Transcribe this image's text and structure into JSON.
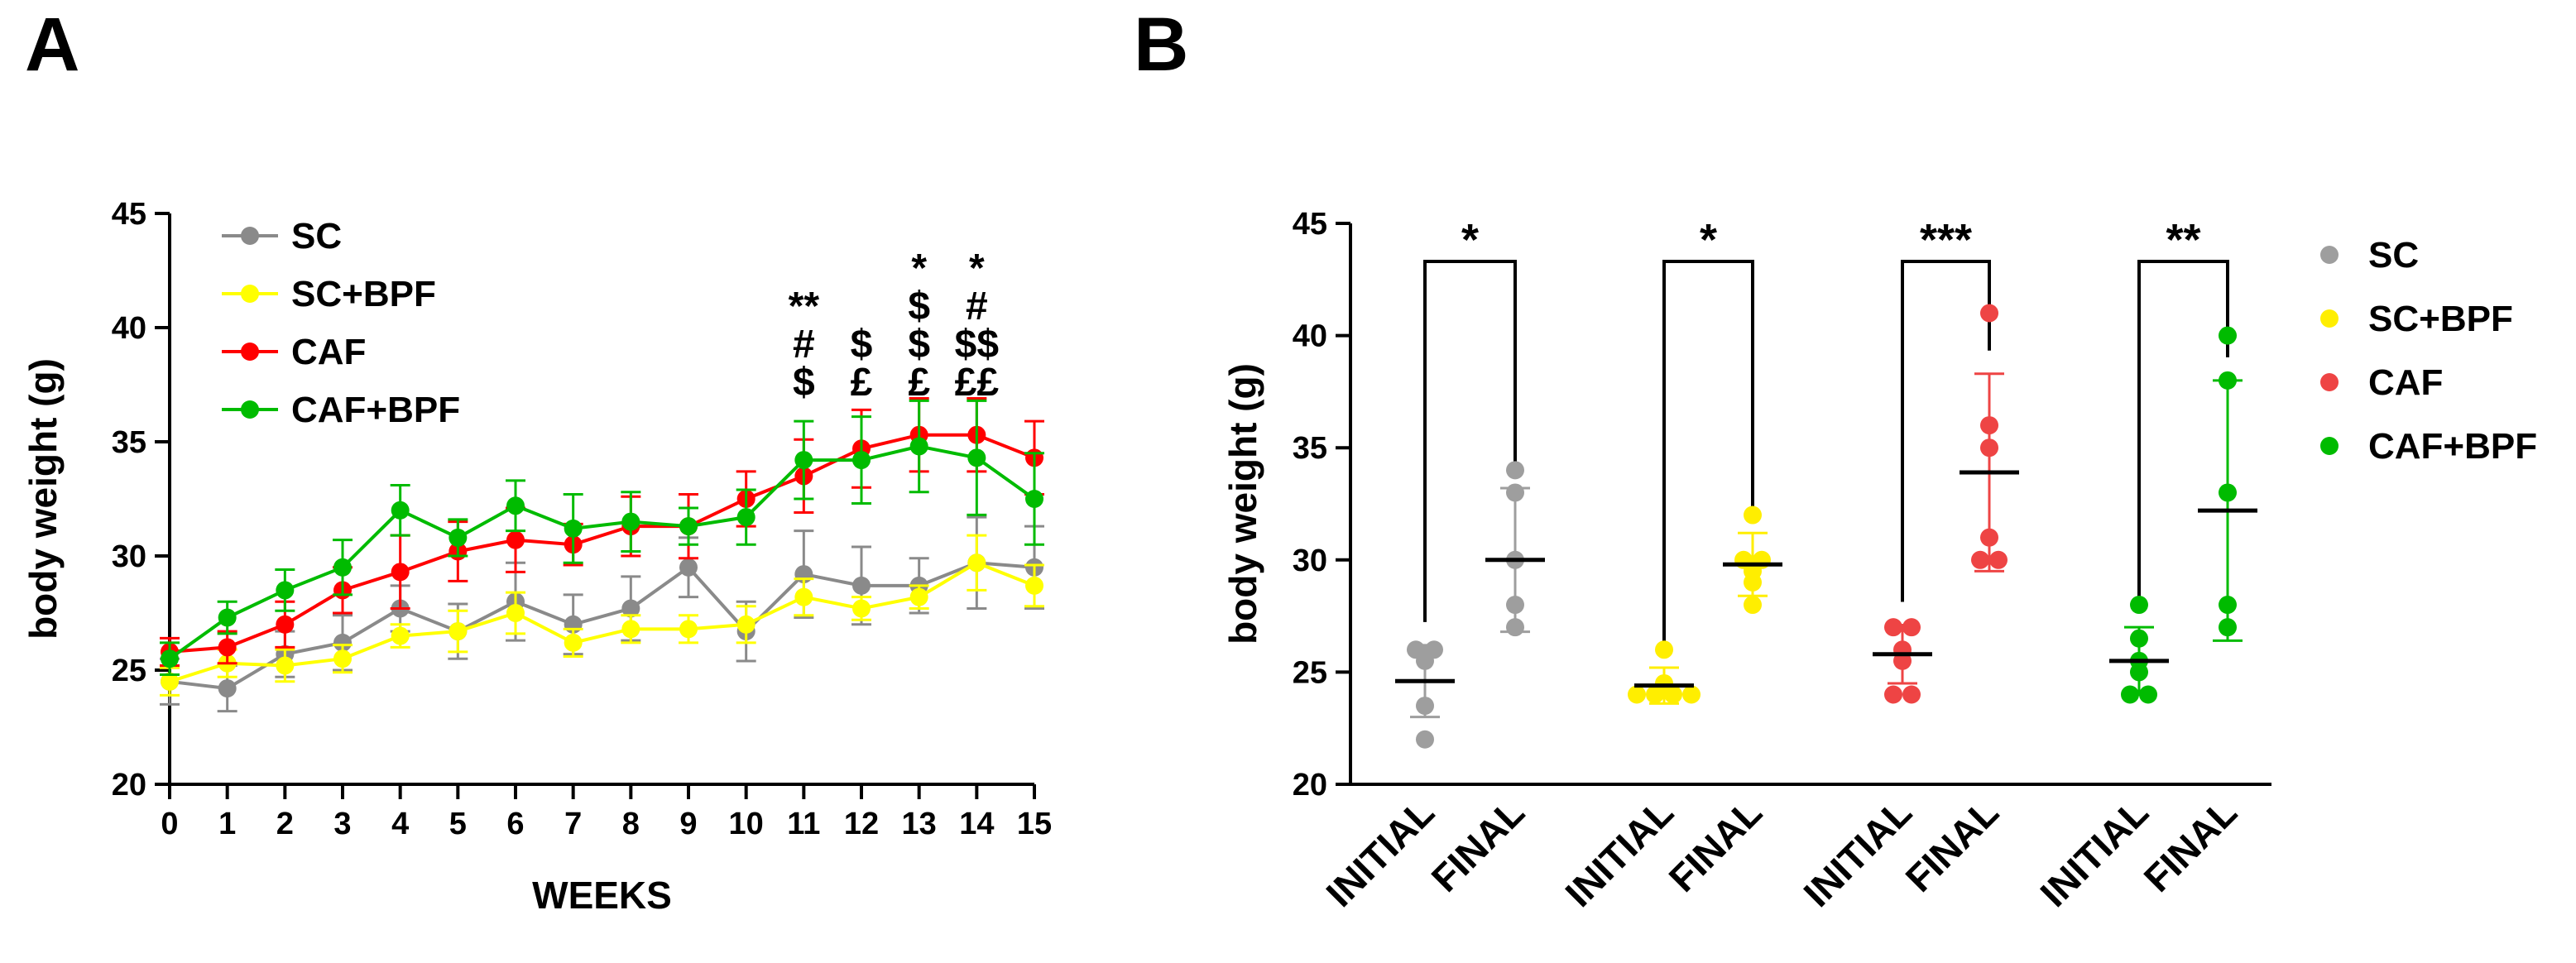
{
  "chart_data": [
    {
      "panel": "A",
      "type": "line",
      "xlabel": "WEEKS",
      "ylabel": "body weight (g)",
      "xlim": [
        0,
        15
      ],
      "ylim": [
        20,
        45
      ],
      "x_ticks": [
        "0",
        "1",
        "2",
        "3",
        "4",
        "5",
        "6",
        "7",
        "8",
        "9",
        "10",
        "11",
        "12",
        "13",
        "14",
        "15"
      ],
      "y_ticks": [
        "20",
        "25",
        "30",
        "35",
        "40",
        "45"
      ],
      "legend_position": "top-left",
      "series": [
        {
          "name": "SC",
          "color": "#8a8a8a",
          "values": [
            24.5,
            24.2,
            25.7,
            26.2,
            27.7,
            26.7,
            28.0,
            27.0,
            27.7,
            29.5,
            26.7,
            29.2,
            28.7,
            28.7,
            29.7,
            29.5
          ],
          "errors": [
            1.0,
            1.0,
            1.0,
            1.2,
            1.0,
            1.2,
            1.7,
            1.3,
            1.4,
            1.3,
            1.3,
            1.9,
            1.7,
            1.2,
            2.0,
            1.8
          ]
        },
        {
          "name": "SC+BPF",
          "color": "#ffff00",
          "values": [
            24.5,
            25.3,
            25.2,
            25.5,
            26.5,
            26.7,
            27.5,
            26.2,
            26.8,
            26.8,
            27.0,
            28.2,
            27.7,
            28.2,
            29.7,
            28.7
          ],
          "errors": [
            0.6,
            0.6,
            0.7,
            0.6,
            0.5,
            0.9,
            0.9,
            0.6,
            0.6,
            0.6,
            0.8,
            0.8,
            0.5,
            0.5,
            1.2,
            0.9
          ]
        },
        {
          "name": "CAF",
          "color": "#ff0000",
          "values": [
            25.8,
            26.0,
            27.0,
            28.5,
            29.3,
            30.2,
            30.7,
            30.5,
            31.3,
            31.3,
            32.5,
            33.5,
            34.7,
            35.3,
            35.3,
            34.3
          ],
          "errors": [
            0.6,
            0.7,
            1.0,
            1.0,
            1.6,
            1.3,
            1.4,
            0.9,
            1.3,
            1.4,
            1.2,
            1.6,
            1.7,
            1.6,
            1.6,
            1.6
          ]
        },
        {
          "name": "CAF+BPF",
          "color": "#00bb00",
          "values": [
            25.5,
            27.3,
            28.5,
            29.5,
            32.0,
            30.8,
            32.2,
            31.2,
            31.5,
            31.3,
            31.7,
            34.2,
            34.2,
            34.8,
            34.3,
            32.5
          ],
          "errors": [
            0.7,
            0.7,
            0.9,
            1.2,
            1.1,
            0.8,
            1.1,
            1.5,
            1.3,
            0.8,
            1.2,
            1.7,
            1.9,
            2.0,
            2.5,
            2.0
          ]
        }
      ],
      "annotations": [
        {
          "x": 11,
          "lines": [
            "**",
            "#",
            "$"
          ]
        },
        {
          "x": 12,
          "lines": [
            "$",
            "£"
          ]
        },
        {
          "x": 13,
          "lines": [
            "*",
            "$",
            "$",
            "£"
          ]
        },
        {
          "x": 14,
          "lines": [
            "*",
            "#",
            "$$",
            "££"
          ]
        }
      ]
    },
    {
      "panel": "B",
      "type": "scatter",
      "ylabel": "body weight (g)",
      "ylim": [
        20,
        45
      ],
      "y_ticks": [
        "20",
        "25",
        "30",
        "35",
        "40",
        "45"
      ],
      "legend_position": "right",
      "groups": [
        {
          "name": "SC",
          "color": "#9e9e9e",
          "significance": "*",
          "initial": {
            "label": "INITIAL",
            "points": [
              22,
              23.5,
              25.5,
              26,
              26
            ],
            "mean": 24.6,
            "sd": 1.6
          },
          "final": {
            "label": "FINAL",
            "points": [
              27,
              28,
              30,
              33,
              34
            ],
            "mean": 30.0,
            "sd": 3.2
          }
        },
        {
          "name": "SC+BPF",
          "color": "#ffee00",
          "significance": "*",
          "initial": {
            "label": "INITIAL",
            "points": [
              24,
              24,
              24,
              24,
              24.5,
              26
            ],
            "mean": 24.4,
            "sd": 0.8
          },
          "final": {
            "label": "FINAL",
            "points": [
              28,
              29,
              29.5,
              30,
              30,
              32
            ],
            "mean": 29.8,
            "sd": 1.4
          }
        },
        {
          "name": "CAF",
          "color": "#ee4444",
          "significance": "***",
          "initial": {
            "label": "INITIAL",
            "points": [
              24,
              24,
              25.5,
              26,
              27,
              27
            ],
            "mean": 25.8,
            "sd": 1.3
          },
          "final": {
            "label": "FINAL",
            "points": [
              30,
              30,
              31,
              35,
              36,
              41
            ],
            "mean": 33.9,
            "sd": 4.4
          }
        },
        {
          "name": "CAF+BPF",
          "color": "#00bb00",
          "significance": "**",
          "initial": {
            "label": "INITIAL",
            "points": [
              24,
              24,
              25,
              25.5,
              26.5,
              28
            ],
            "mean": 25.5,
            "sd": 1.5
          },
          "final": {
            "label": "FINAL",
            "points": [
              27,
              28,
              33,
              38,
              40
            ],
            "mean": 32.2,
            "sd": 5.8
          }
        }
      ]
    }
  ]
}
